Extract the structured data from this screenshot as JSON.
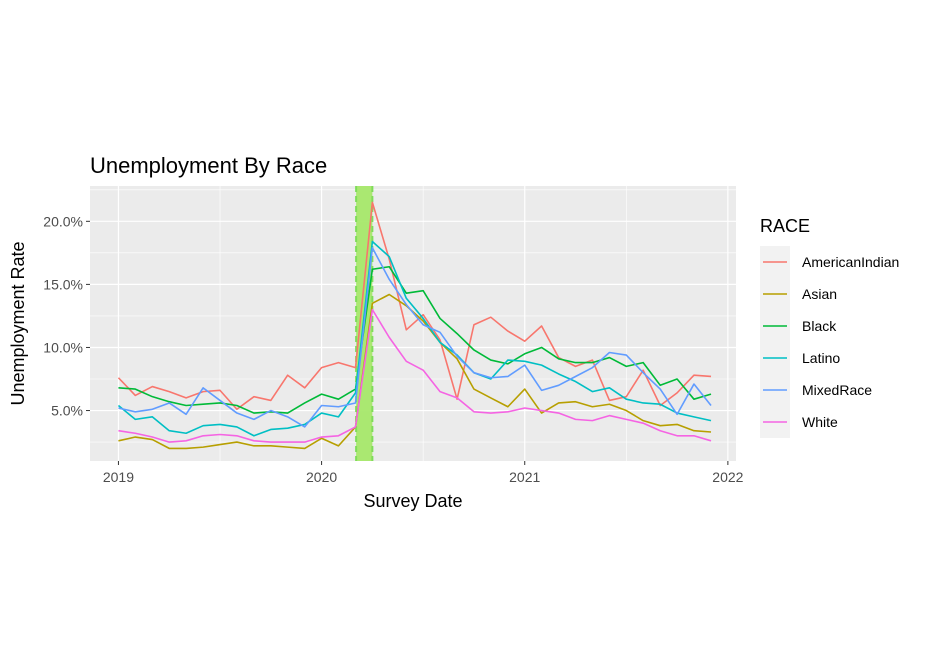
{
  "chart_data": {
    "type": "line",
    "title": "Unemployment By Race",
    "xlabel": "Survey Date",
    "ylabel": "Unemployment Rate",
    "x_ticks": [
      "2019",
      "2020",
      "2021",
      "2022"
    ],
    "y_ticks": [
      "5.0%",
      "10.0%",
      "15.0%",
      "20.0%"
    ],
    "xlim": [
      2018.86,
      2022.04
    ],
    "ylim": [
      1.0,
      22.8
    ],
    "grid": true,
    "legend_title": "RACE",
    "legend_position": "right",
    "highlight_band": {
      "x_start": 2020.17,
      "x_end": 2020.25,
      "color": "#a6e86a",
      "border": "dashed"
    },
    "x": [
      2019.0,
      2019.083,
      2019.167,
      2019.25,
      2019.333,
      2019.417,
      2019.5,
      2019.583,
      2019.667,
      2019.75,
      2019.833,
      2019.917,
      2020.0,
      2020.083,
      2020.167,
      2020.25,
      2020.333,
      2020.417,
      2020.5,
      2020.583,
      2020.667,
      2020.75,
      2020.833,
      2020.917,
      2021.0,
      2021.083,
      2021.167,
      2021.25,
      2021.333,
      2021.417,
      2021.5,
      2021.583,
      2021.667,
      2021.75,
      2021.833,
      2021.917
    ],
    "series": [
      {
        "name": "AmericanIndian",
        "color": "#F8766D",
        "values": [
          7.6,
          6.2,
          6.9,
          6.5,
          6.0,
          6.5,
          6.6,
          5.1,
          6.1,
          5.8,
          7.8,
          6.8,
          8.4,
          8.8,
          8.4,
          21.5,
          17.0,
          11.4,
          12.6,
          10.6,
          5.9,
          11.8,
          12.4,
          11.3,
          10.5,
          11.7,
          9.2,
          8.5,
          9.0,
          5.8,
          6.1,
          8.2,
          5.4,
          6.4,
          7.8,
          7.7
        ]
      },
      {
        "name": "Asian",
        "color": "#B79F00",
        "values": [
          2.6,
          2.9,
          2.7,
          2.0,
          2.0,
          2.1,
          2.3,
          2.5,
          2.2,
          2.2,
          2.1,
          2.0,
          2.8,
          2.2,
          3.7,
          13.5,
          14.2,
          13.3,
          12.1,
          10.4,
          9.1,
          6.7,
          6.0,
          5.3,
          6.7,
          4.8,
          5.6,
          5.7,
          5.3,
          5.5,
          5.0,
          4.2,
          3.8,
          3.9,
          3.4,
          3.3
        ]
      },
      {
        "name": "Black",
        "color": "#00BA38",
        "values": [
          6.8,
          6.7,
          6.1,
          5.7,
          5.4,
          5.5,
          5.6,
          5.4,
          4.8,
          4.9,
          4.8,
          5.6,
          6.3,
          5.9,
          6.7,
          16.2,
          16.4,
          14.3,
          14.5,
          12.3,
          11.1,
          9.8,
          9.0,
          8.7,
          9.5,
          10.0,
          9.1,
          8.8,
          8.8,
          9.2,
          8.5,
          8.8,
          7.0,
          7.5,
          5.9,
          6.3
        ]
      },
      {
        "name": "Latino",
        "color": "#00BFC4",
        "values": [
          5.4,
          4.3,
          4.5,
          3.4,
          3.2,
          3.8,
          3.9,
          3.7,
          3.0,
          3.5,
          3.6,
          3.9,
          4.8,
          4.5,
          6.4,
          18.4,
          17.2,
          13.9,
          12.3,
          10.4,
          9.4,
          8.0,
          7.5,
          9.0,
          8.9,
          8.6,
          7.9,
          7.3,
          6.5,
          6.8,
          5.9,
          5.6,
          5.5,
          4.8,
          4.5,
          4.2
        ]
      },
      {
        "name": "MixedRace",
        "color": "#619CFF",
        "values": [
          5.2,
          4.9,
          5.1,
          5.6,
          4.7,
          6.8,
          5.8,
          4.8,
          4.3,
          5.0,
          4.5,
          3.7,
          5.4,
          5.3,
          5.6,
          17.9,
          15.4,
          13.4,
          11.8,
          11.2,
          9.3,
          8.0,
          7.6,
          7.7,
          8.6,
          6.6,
          7.0,
          7.7,
          8.4,
          9.6,
          9.4,
          8.0,
          6.7,
          4.7,
          7.1,
          5.4
        ]
      },
      {
        "name": "White",
        "color": "#F564E3",
        "values": [
          3.4,
          3.2,
          2.9,
          2.5,
          2.6,
          3.0,
          3.1,
          3.0,
          2.6,
          2.5,
          2.5,
          2.5,
          2.9,
          3.0,
          3.7,
          13.0,
          10.8,
          8.9,
          8.2,
          6.5,
          6.0,
          4.9,
          4.8,
          4.9,
          5.2,
          5.0,
          4.8,
          4.3,
          4.2,
          4.6,
          4.3,
          4.0,
          3.4,
          3.0,
          3.0,
          2.6
        ]
      }
    ]
  }
}
